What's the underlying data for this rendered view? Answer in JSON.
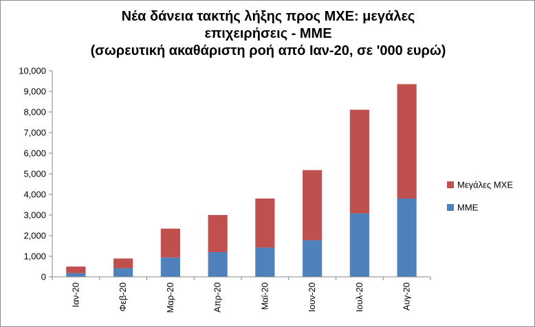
{
  "chart_data": {
    "type": "bar",
    "stacked": true,
    "title_lines": [
      "Νέα δάνεια τακτής λήξης προς ΜΧΕ: μεγάλες",
      "επιχειρήσεις - ΜΜΕ",
      "(σωρευτική ακαθάριστη ροή από Ιαν-20, σε '000 ευρώ)"
    ],
    "categories": [
      "Ιαν-20",
      "Φεβ-20",
      "Μαρ-20",
      "Απρ-20",
      "Μαϊ-20",
      "Ιουν-20",
      "Ιουλ-20",
      "Αυγ-20"
    ],
    "series": [
      {
        "name": "ΜΜΕ",
        "color": "#4f81bd",
        "values": [
          180,
          420,
          940,
          1200,
          1420,
          1780,
          3080,
          3800
        ]
      },
      {
        "name": "Μεγάλες ΜΧΕ",
        "color": "#c0504d",
        "values": [
          320,
          470,
          1400,
          1800,
          2380,
          3400,
          5030,
          5550
        ]
      }
    ],
    "legend_order": [
      "Μεγάλες ΜΧΕ",
      "ΜΜΕ"
    ],
    "ylim": [
      0,
      10000
    ],
    "yticks": [
      0,
      1000,
      2000,
      3000,
      4000,
      5000,
      6000,
      7000,
      8000,
      9000,
      10000
    ],
    "ytick_labels": [
      "0",
      "1,000",
      "2,000",
      "3,000",
      "4,000",
      "5,000",
      "6,000",
      "7,000",
      "8,000",
      "9,000",
      "10,000"
    ],
    "legend_position": "right",
    "grid": false
  }
}
